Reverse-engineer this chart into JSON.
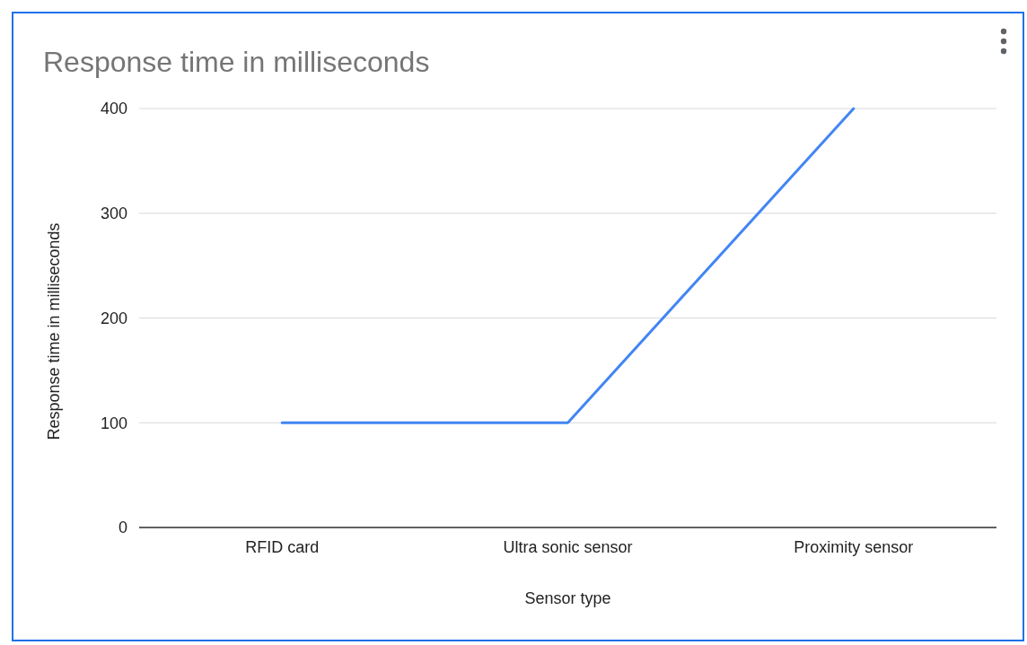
{
  "chart_data": {
    "type": "line",
    "title": "Response time in milliseconds",
    "xlabel": "Sensor type",
    "ylabel": "Response time in milliseconds",
    "categories": [
      "RFID card",
      "Ultra sonic sensor",
      "Proximity sensor"
    ],
    "series": [
      {
        "color": "#4285f4",
        "values": [
          100,
          100,
          400
        ]
      }
    ],
    "ylim": [
      0,
      400
    ],
    "yticks": [
      0,
      100,
      200,
      300,
      400
    ],
    "grid": "y",
    "marker": "none",
    "line_style": "solid"
  }
}
